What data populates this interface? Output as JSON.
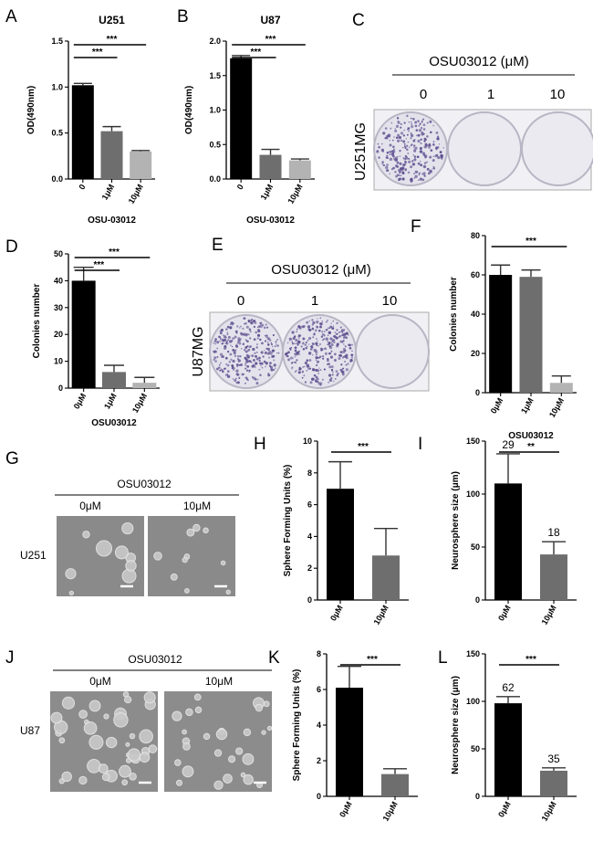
{
  "panel_letters": [
    "A",
    "B",
    "C",
    "D",
    "E",
    "F",
    "G",
    "H",
    "I",
    "J",
    "K",
    "L"
  ],
  "chart_data": [
    {
      "id": "A",
      "type": "bar",
      "title": "U251",
      "ylabel": "OD(490nm)",
      "xlabel": "OSU-03012",
      "ylim": [
        0,
        1.5
      ],
      "yticks": [
        "0.0",
        "0.5",
        "1.0",
        "1.5"
      ],
      "categories": [
        "0",
        "1μM",
        "10μM"
      ],
      "values": [
        1.02,
        0.52,
        0.3
      ],
      "errors": [
        0.02,
        0.05,
        0.01
      ],
      "colors": [
        "#000000",
        "#6e6e6e",
        "#b3b3b3"
      ],
      "significance": [
        {
          "from": 0,
          "to": 1,
          "label": "***"
        },
        {
          "from": 0,
          "to": 2,
          "label": "***"
        }
      ]
    },
    {
      "id": "B",
      "type": "bar",
      "title": "U87",
      "ylabel": "OD(490nm)",
      "xlabel": "OSU-03012",
      "ylim": [
        0,
        2.0
      ],
      "yticks": [
        "0.0",
        "0.5",
        "1.0",
        "1.5",
        "2.0"
      ],
      "categories": [
        "0",
        "1μM",
        "10μM"
      ],
      "values": [
        1.75,
        0.35,
        0.27
      ],
      "errors": [
        0.04,
        0.08,
        0.02
      ],
      "colors": [
        "#000000",
        "#6e6e6e",
        "#b3b3b3"
      ],
      "significance": [
        {
          "from": 0,
          "to": 1,
          "label": "***"
        },
        {
          "from": 0,
          "to": 2,
          "label": "***"
        }
      ]
    },
    {
      "id": "D",
      "type": "bar",
      "title": "",
      "ylabel": "Colonies number",
      "xlabel": "OSU03012",
      "ylim": [
        0,
        50
      ],
      "yticks": [
        "0",
        "10",
        "20",
        "30",
        "40",
        "50"
      ],
      "categories": [
        "0μM",
        "1μM",
        "10μM"
      ],
      "values": [
        40,
        6,
        2
      ],
      "errors": [
        5,
        2.5,
        2
      ],
      "colors": [
        "#000000",
        "#6e6e6e",
        "#b3b3b3"
      ],
      "significance": [
        {
          "from": 0,
          "to": 1,
          "label": "***"
        },
        {
          "from": 0,
          "to": 2,
          "label": "***"
        }
      ]
    },
    {
      "id": "F",
      "type": "bar",
      "title": "",
      "ylabel": "Colonies number",
      "xlabel": "OSU03012",
      "ylim": [
        0,
        80
      ],
      "yticks": [
        "0",
        "20",
        "40",
        "60",
        "80"
      ],
      "categories": [
        "0μM",
        "1μM",
        "10μM"
      ],
      "values": [
        60,
        59,
        5
      ],
      "errors": [
        5,
        3.5,
        3.5
      ],
      "colors": [
        "#000000",
        "#6e6e6e",
        "#b3b3b3"
      ],
      "significance": [
        {
          "from": 0,
          "to": 2,
          "label": "***"
        }
      ]
    },
    {
      "id": "H",
      "type": "bar",
      "title": "",
      "ylabel": "Sphere Forming Units (%)",
      "xlabel": "",
      "ylim": [
        0,
        10
      ],
      "yticks": [
        "0",
        "2",
        "4",
        "6",
        "8",
        "10"
      ],
      "categories": [
        "0μM",
        "10μM"
      ],
      "values": [
        7.0,
        2.8
      ],
      "errors": [
        1.7,
        1.7
      ],
      "colors": [
        "#000000",
        "#6e6e6e"
      ],
      "significance": [
        {
          "from": 0,
          "to": 1,
          "label": "***"
        }
      ]
    },
    {
      "id": "I",
      "type": "bar",
      "title": "",
      "ylabel": "Neurosphere size (μm)",
      "xlabel": "",
      "ylim": [
        0,
        150
      ],
      "yticks": [
        "0",
        "50",
        "100",
        "150"
      ],
      "categories": [
        "0μM",
        "10μM"
      ],
      "values": [
        110,
        43
      ],
      "errors": [
        28,
        12
      ],
      "colors": [
        "#000000",
        "#6e6e6e"
      ],
      "bar_labels": [
        "29",
        "18"
      ],
      "significance": [
        {
          "from": 0,
          "to": 1,
          "label": "**"
        }
      ]
    },
    {
      "id": "K",
      "type": "bar",
      "title": "",
      "ylabel": "Sphere Forming Units (%)",
      "xlabel": "",
      "ylim": [
        0,
        8
      ],
      "yticks": [
        "0",
        "2",
        "4",
        "6",
        "8"
      ],
      "categories": [
        "0μM",
        "10μM"
      ],
      "values": [
        6.1,
        1.25
      ],
      "errors": [
        1.2,
        0.3
      ],
      "colors": [
        "#000000",
        "#6e6e6e"
      ],
      "significance": [
        {
          "from": 0,
          "to": 1,
          "label": "***"
        }
      ]
    },
    {
      "id": "L",
      "type": "bar",
      "title": "",
      "ylabel": "Neurosphere size (μm)",
      "xlabel": "",
      "ylim": [
        0,
        150
      ],
      "yticks": [
        "0",
        "50",
        "100",
        "150"
      ],
      "categories": [
        "0μM",
        "10μM"
      ],
      "values": [
        98,
        27
      ],
      "errors": [
        7,
        3
      ],
      "colors": [
        "#000000",
        "#6e6e6e"
      ],
      "bar_labels": [
        "62",
        "35"
      ],
      "significance": [
        {
          "from": 0,
          "to": 1,
          "label": "***"
        }
      ]
    }
  ],
  "images": {
    "C": {
      "header": "OSU03012 (μM)",
      "doses": [
        "0",
        "1",
        "10"
      ],
      "cell_line": "U251MG"
    },
    "E": {
      "header": "OSU03012 (μM)",
      "doses": [
        "0",
        "1",
        "10"
      ],
      "cell_line": "U87MG"
    },
    "G": {
      "header": "OSU03012",
      "doses": [
        "0μM",
        "10μM"
      ],
      "cell_line": "U251"
    },
    "J": {
      "header": "OSU03012",
      "doses": [
        "0μM",
        "10μM"
      ],
      "cell_line": "U87"
    }
  },
  "colors": {
    "plate_bg": "#e4e3ec",
    "colony": "#5d4e8e",
    "micro_bg": "#8a8a8a"
  }
}
